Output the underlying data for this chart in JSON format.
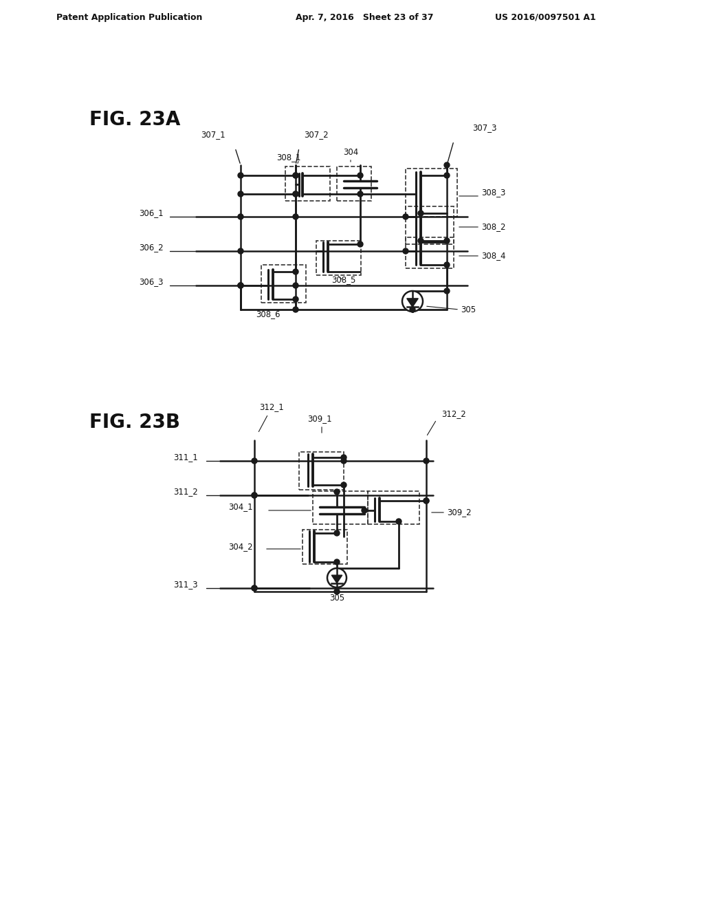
{
  "bg_color": "#ffffff",
  "line_color": "#1a1a1a",
  "dashed_color": "#333333",
  "header_left": "Patent Application Publication",
  "header_mid": "Apr. 7, 2016   Sheet 23 of 37",
  "header_right": "US 2016/0097501 A1",
  "fig23a_label": "FIG. 23A",
  "fig23b_label": "FIG. 23B"
}
